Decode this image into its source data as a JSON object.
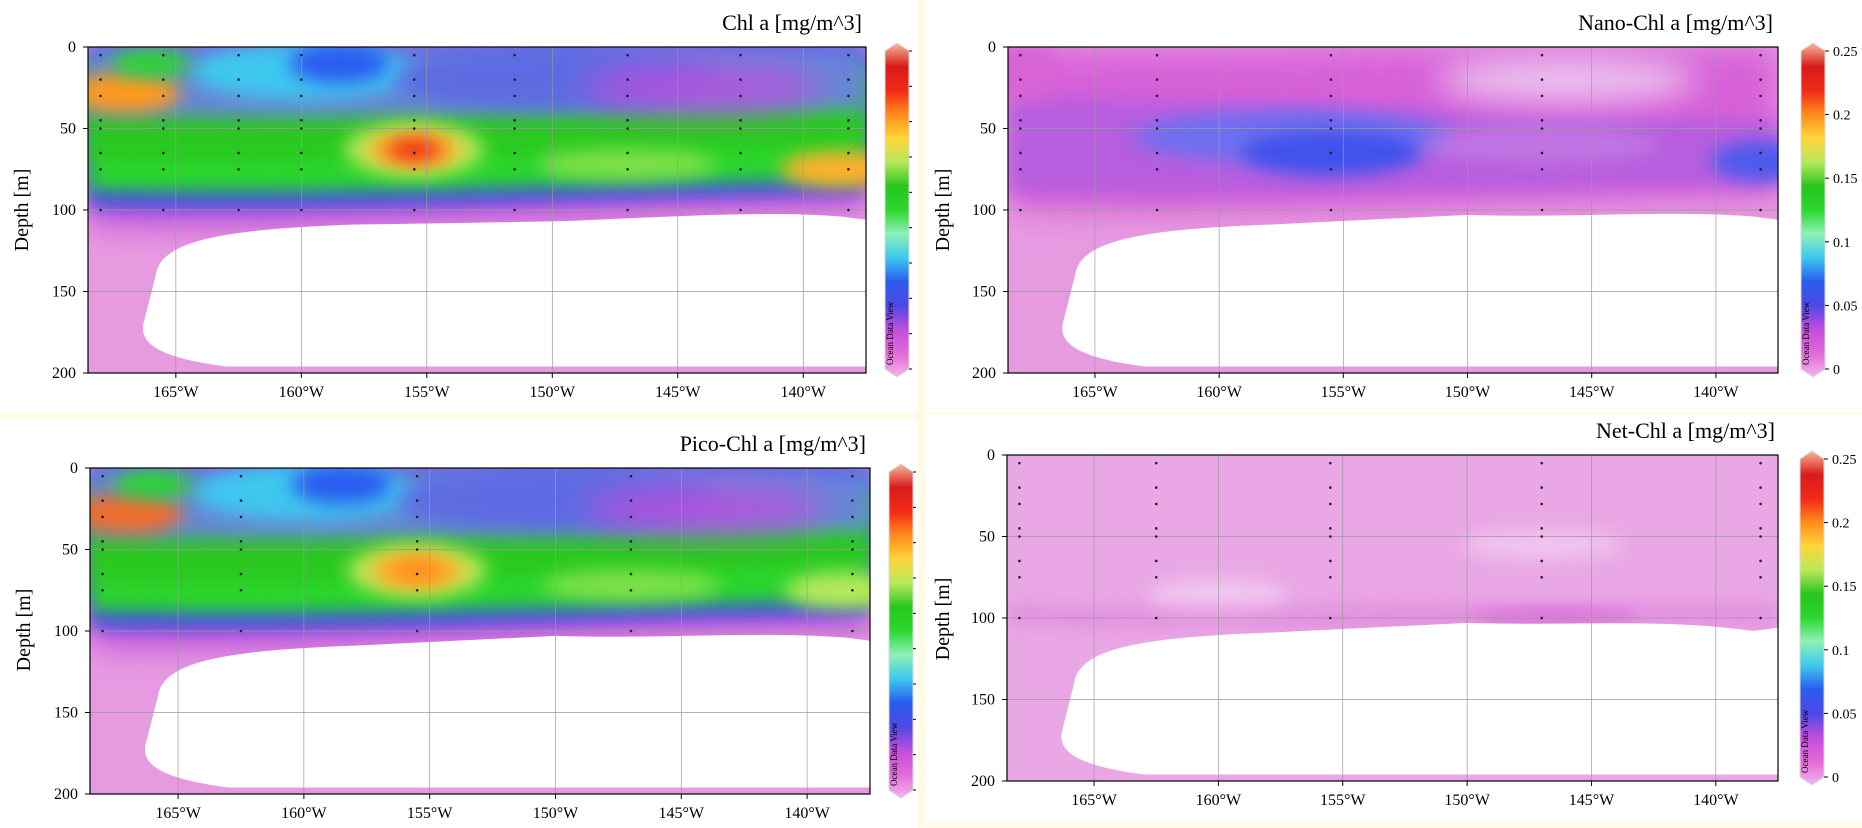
{
  "chart_data": [
    {
      "type": "heatmap",
      "title": "Chl a [mg/m^3]",
      "ylabel": "Depth [m]",
      "xticks": [
        "165°W",
        "160°W",
        "155°W",
        "150°W",
        "145°W",
        "140°W"
      ],
      "yticks": [
        "0",
        "50",
        "100",
        "150",
        "200"
      ],
      "colorbar_ticks": [],
      "watermark": "Ocean Data View",
      "x_range": [
        -168.5,
        -137.5
      ],
      "y_range": [
        0,
        200
      ],
      "stations": [
        -168,
        -165.5,
        -162.5,
        -160,
        -155.5,
        -151.5,
        -147,
        -142.5,
        -138.2
      ],
      "hotspot": {
        "lon": -155.5,
        "depth": 63
      },
      "colorscale": [
        "#f0b5ec",
        "#e36ad6",
        "#c04ddc",
        "#4d49e6",
        "#2b5cf0",
        "#3cc8ef",
        "#8ff1b8",
        "#2bd72d",
        "#27c61d",
        "#b7e85a",
        "#ffd63a",
        "#ff8c1c",
        "#f22a17",
        "#d81b1b",
        "#f9b99a"
      ]
    },
    {
      "type": "heatmap",
      "title": "Nano-Chl a [mg/m^3]",
      "ylabel": "Depth [m]",
      "xticks": [
        "165°W",
        "160°W",
        "155°W",
        "150°W",
        "145°W",
        "140°W"
      ],
      "yticks": [
        "0",
        "50",
        "100",
        "150",
        "200"
      ],
      "colorbar_ticks": [
        "0",
        "0.05",
        "0.1",
        "0.15",
        "0.2",
        "0.25"
      ],
      "color_range": [
        0,
        0.25
      ],
      "watermark": "Ocean Data View",
      "x_range": [
        -168.5,
        -137.5
      ],
      "y_range": [
        0,
        200
      ],
      "stations": [
        -168,
        -162.5,
        -155.5,
        -147,
        -138.2
      ],
      "hotspot": {
        "lon": -155.5,
        "depth": 65
      },
      "colorscale": [
        "#f0b5ec",
        "#e36ad6",
        "#c04ddc",
        "#4d49e6",
        "#2b5cf0",
        "#3cc8ef",
        "#8ff1b8",
        "#2bd72d",
        "#27c61d",
        "#b7e85a",
        "#ffd63a",
        "#ff8c1c",
        "#f22a17",
        "#d81b1b",
        "#f9b99a"
      ]
    },
    {
      "type": "heatmap",
      "title": "Pico-Chl a [mg/m^3]",
      "ylabel": "Depth [m]",
      "xticks": [
        "165°W",
        "160°W",
        "155°W",
        "150°W",
        "145°W",
        "140°W"
      ],
      "yticks": [
        "0",
        "50",
        "100",
        "150",
        "200"
      ],
      "colorbar_ticks": [],
      "watermark": "Ocean Data View",
      "x_range": [
        -168.5,
        -137.5
      ],
      "y_range": [
        0,
        200
      ],
      "stations": [
        -168,
        -162.5,
        -155.5,
        -147,
        -138.2
      ],
      "hotspot": {
        "lon": -155.5,
        "depth": 63
      },
      "colorscale": [
        "#f0b5ec",
        "#e36ad6",
        "#c04ddc",
        "#4d49e6",
        "#2b5cf0",
        "#3cc8ef",
        "#8ff1b8",
        "#2bd72d",
        "#27c61d",
        "#b7e85a",
        "#ffd63a",
        "#ff8c1c",
        "#f22a17",
        "#d81b1b",
        "#f9b99a"
      ]
    },
    {
      "type": "heatmap",
      "title": "Net-Chl a [mg/m^3]",
      "ylabel": "Depth [m]",
      "xticks": [
        "165°W",
        "160°W",
        "155°W",
        "150°W",
        "145°W",
        "140°W"
      ],
      "yticks": [
        "0",
        "50",
        "100",
        "150",
        "200"
      ],
      "colorbar_ticks": [
        "0",
        "0.05",
        "0.1",
        "0.15",
        "0.2",
        "0.25"
      ],
      "color_range": [
        0,
        0.25
      ],
      "watermark": "Ocean Data View",
      "x_range": [
        -168.5,
        -137.5
      ],
      "y_range": [
        0,
        200
      ],
      "stations": [
        -168,
        -162.5,
        -155.5,
        -147,
        -138.2
      ],
      "colorscale": [
        "#f0b5ec",
        "#e36ad6",
        "#c04ddc",
        "#4d49e6",
        "#2b5cf0",
        "#3cc8ef",
        "#8ff1b8",
        "#2bd72d",
        "#27c61d",
        "#b7e85a",
        "#ffd63a",
        "#ff8c1c",
        "#f22a17",
        "#d81b1b",
        "#f9b99a"
      ]
    }
  ]
}
